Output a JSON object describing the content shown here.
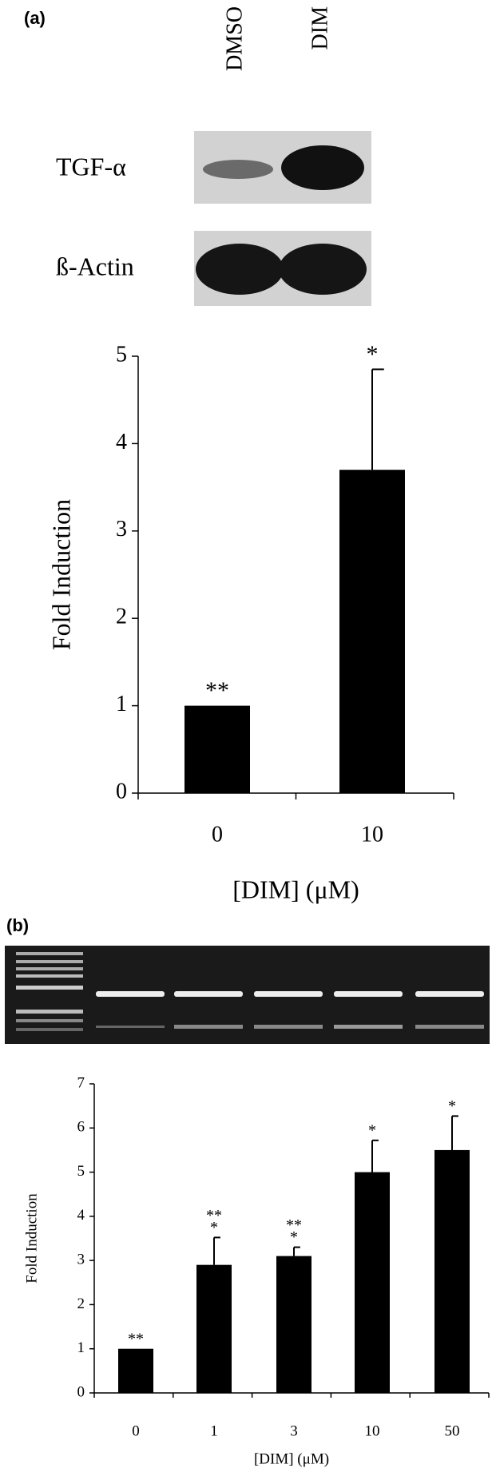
{
  "panel_labels": [
    "(a)",
    "(b)"
  ],
  "blot": {
    "lanes": [
      "DMSO",
      "DIM"
    ],
    "rows": [
      "TGF-α",
      "ß-Actin"
    ]
  },
  "chart_data": [
    {
      "type": "bar",
      "ylabel": "Fold Induction",
      "xlabel": "[DIM] (μM)",
      "categories": [
        "0",
        "10"
      ],
      "values": [
        1,
        3.7
      ],
      "errors": [
        null,
        1.15
      ],
      "annotations": [
        [
          "**"
        ],
        [
          "*"
        ]
      ],
      "color": "#000000",
      "ylim": [
        0,
        5
      ],
      "yticks": [
        0,
        1,
        2,
        3,
        4,
        5
      ]
    },
    {
      "type": "bar",
      "ylabel": "Fold Induction",
      "xlabel": "[DIM] (μM)",
      "categories": [
        "0",
        "1",
        "3",
        "10",
        "50"
      ],
      "values": [
        1,
        2.9,
        3.1,
        5.0,
        5.5
      ],
      "errors": [
        null,
        0.62,
        0.2,
        0.72,
        0.77
      ],
      "annotations": [
        [
          "**"
        ],
        [
          "**",
          "*"
        ],
        [
          "**",
          "*"
        ],
        [
          "*"
        ],
        [
          "*"
        ]
      ],
      "color": "#000000",
      "ylim": [
        0,
        7
      ],
      "yticks": [
        0,
        1,
        2,
        3,
        4,
        5,
        6,
        7
      ]
    }
  ]
}
